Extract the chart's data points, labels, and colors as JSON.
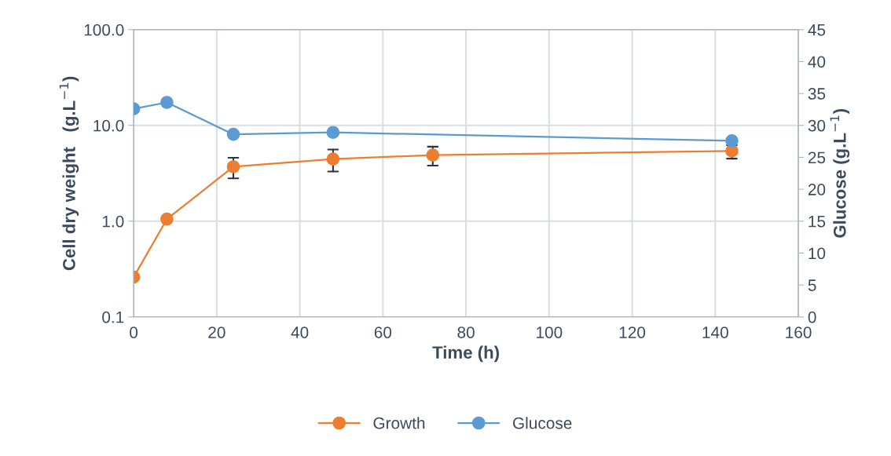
{
  "chart_data": {
    "type": "line",
    "xlabel": "Time (h)",
    "ylabel": "Cell dry weight   (g.L$^{−1}$)",
    "y2label": "Glucose (g.L$^{−1}$)",
    "xlim": [
      0,
      160
    ],
    "xticks": [
      0,
      20,
      40,
      60,
      80,
      100,
      120,
      140,
      160
    ],
    "log": "y",
    "ylim": [
      0.1,
      100
    ],
    "yticks": [
      {
        "value": 0.1,
        "label": "0.1"
      },
      {
        "value": 1,
        "label": "1.0"
      },
      {
        "value": 10,
        "label": "10.0"
      },
      {
        "value": 100,
        "label": "100.0"
      }
    ],
    "y2lim": [
      0,
      45
    ],
    "y2ticks": [
      0,
      5,
      10,
      15,
      20,
      25,
      30,
      35,
      40,
      45
    ],
    "grid": true,
    "legend": "bottom",
    "marker": "circle",
    "line_style": "solid",
    "series": [
      {
        "name": "Growth",
        "color": "#ed7d31",
        "x": [
          0,
          8,
          24,
          48,
          72,
          144
        ],
        "values": [
          0.26,
          1.05,
          3.7,
          4.45,
          4.9,
          5.4
        ],
        "errors": [
          null,
          null,
          [
            2.8,
            4.6
          ],
          [
            3.3,
            5.6
          ],
          [
            3.8,
            6.0
          ],
          [
            4.5,
            6.2
          ]
        ]
      },
      {
        "name": "Glucose",
        "color": "#5b9bd5",
        "axis": "y2",
        "x": [
          0,
          8,
          24,
          48,
          144
        ],
        "values": [
          32.6,
          33.6,
          28.6,
          28.9,
          27.6
        ]
      }
    ]
  }
}
